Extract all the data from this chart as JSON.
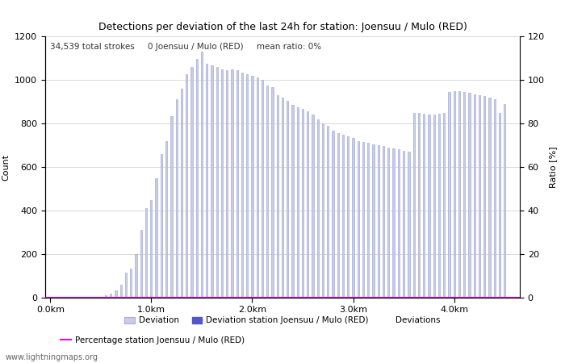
{
  "title": "Detections per deviation of the last 24h for station: Joensuu / Mulo (RED)",
  "ylabel_left": "Count",
  "ylabel_right": "Ratio [%]",
  "annotation_text": "34,539 total strokes     0 Joensuu / Mulo (RED)     mean ratio: 0%",
  "xlim": [
    -0.05,
    4.65
  ],
  "ylim_left": [
    0,
    1200
  ],
  "ylim_right": [
    0,
    120
  ],
  "bar_color": "#c8cce8",
  "bar_edge_color": "#a8acd8",
  "station_bar_color": "#5555cc",
  "ratio_line_color": "#ee00ee",
  "xtick_labels": [
    "0.0km",
    "1.0km",
    "2.0km",
    "3.0km",
    "4.0km"
  ],
  "xtick_positions": [
    0.0,
    1.0,
    2.0,
    3.0,
    4.0
  ],
  "yticks_left": [
    0,
    200,
    400,
    600,
    800,
    1000,
    1200
  ],
  "yticks_right": [
    0,
    20,
    40,
    60,
    80,
    100,
    120
  ],
  "grid_color": "#cccccc",
  "watermark": "www.lightningmaps.org",
  "legend_entries": [
    "Deviation",
    "Deviation station Joensuu / Mulo (RED)",
    "Deviations",
    "Percentage station Joensuu / Mulo (RED)"
  ],
  "bar_positions": [
    0.05,
    0.1,
    0.15,
    0.2,
    0.25,
    0.3,
    0.35,
    0.4,
    0.45,
    0.5,
    0.55,
    0.6,
    0.65,
    0.7,
    0.75,
    0.8,
    0.85,
    0.9,
    0.95,
    1.0,
    1.05,
    1.1,
    1.15,
    1.2,
    1.25,
    1.3,
    1.35,
    1.4,
    1.45,
    1.5,
    1.55,
    1.6,
    1.65,
    1.7,
    1.75,
    1.8,
    1.85,
    1.9,
    1.95,
    2.0,
    2.05,
    2.1,
    2.15,
    2.2,
    2.25,
    2.3,
    2.35,
    2.4,
    2.45,
    2.5,
    2.55,
    2.6,
    2.65,
    2.7,
    2.75,
    2.8,
    2.85,
    2.9,
    2.95,
    3.0,
    3.05,
    3.1,
    3.15,
    3.2,
    3.25,
    3.3,
    3.35,
    3.4,
    3.45,
    3.5,
    3.55,
    3.6,
    3.65,
    3.7,
    3.75,
    3.8,
    3.85,
    3.9,
    3.95,
    4.0,
    4.05,
    4.1,
    4.15,
    4.2,
    4.25,
    4.3,
    4.35,
    4.4,
    4.45,
    4.5
  ],
  "bar_heights": [
    0,
    0,
    0,
    0,
    0,
    0,
    0,
    0,
    0,
    5,
    10,
    20,
    35,
    60,
    115,
    135,
    200,
    310,
    410,
    450,
    550,
    660,
    720,
    835,
    910,
    960,
    1025,
    1060,
    1095,
    1130,
    1075,
    1065,
    1060,
    1050,
    1045,
    1050,
    1045,
    1035,
    1025,
    1020,
    1010,
    1000,
    975,
    965,
    930,
    920,
    905,
    885,
    875,
    865,
    855,
    840,
    820,
    800,
    790,
    765,
    755,
    750,
    740,
    735,
    720,
    715,
    710,
    705,
    700,
    695,
    690,
    685,
    680,
    675,
    670,
    850,
    850,
    845,
    840,
    840,
    845,
    848,
    945,
    950,
    950,
    945,
    940,
    935,
    930,
    925,
    918,
    910,
    850,
    890
  ],
  "bar_width": 0.018
}
